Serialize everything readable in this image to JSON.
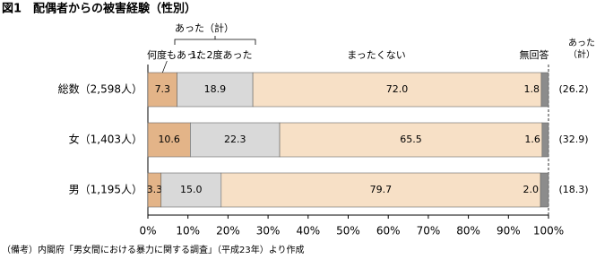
{
  "chart_data": {
    "type": "stacked-bar-horizontal",
    "title": "図1　配偶者からの被害経験（性別）",
    "categories": [
      "総数（2,598人）",
      "女（1,403人）",
      "男（1,195人）"
    ],
    "series": [
      {
        "name": "何度もあった",
        "color": "#e3b488",
        "values": [
          7.3,
          10.6,
          3.3
        ],
        "value_labels": [
          "7.3",
          "10.6",
          "3.3"
        ]
      },
      {
        "name": "1、2度あった",
        "color": "#d9d9d9",
        "values": [
          18.9,
          22.3,
          15.0
        ],
        "value_labels": [
          "18.9",
          "22.3",
          "15.0"
        ]
      },
      {
        "name": "まったくない",
        "color": "#f7e0c6",
        "values": [
          72.0,
          65.5,
          79.7
        ],
        "value_labels": [
          "72.0",
          "65.5",
          "79.7"
        ]
      },
      {
        "name": "無回答",
        "color": "#8c8c8c",
        "values": [
          1.8,
          1.6,
          2.0
        ],
        "value_labels": [
          "1.8",
          "1.6",
          "2.0"
        ]
      }
    ],
    "group_label": "あった（計）",
    "totals": {
      "label": "あった（計）",
      "values": [
        26.2,
        32.9,
        18.3
      ],
      "value_labels": [
        "(26.2)",
        "(32.9)",
        "(18.3)"
      ]
    },
    "xlim": [
      0,
      100
    ],
    "xticks": [
      {
        "value": 0,
        "label": "0%"
      },
      {
        "value": 10,
        "label": "10%"
      },
      {
        "value": 20,
        "label": "20%"
      },
      {
        "value": 30,
        "label": "30%"
      },
      {
        "value": 40,
        "label": "40%"
      },
      {
        "value": 50,
        "label": "50%"
      },
      {
        "value": 60,
        "label": "60%"
      },
      {
        "value": 70,
        "label": "70%"
      },
      {
        "value": 80,
        "label": "80%"
      },
      {
        "value": 90,
        "label": "90%"
      },
      {
        "value": 100,
        "label": "100%"
      }
    ],
    "grid": false,
    "note": "（備考）内閣府「男女間における暴力に関する調査」（平成23年）より作成"
  }
}
